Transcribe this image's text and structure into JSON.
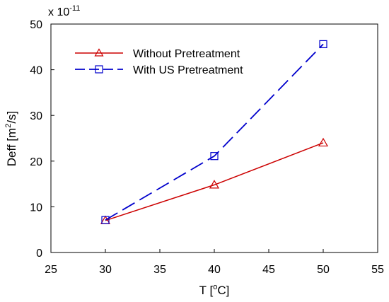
{
  "chart_data": {
    "type": "line",
    "scale_note": "x 10",
    "scale_exponent": "-11",
    "xlabel_text": "T [",
    "xlabel_sup": "o",
    "xlabel_unit": "C]",
    "ylabel_text": "Deff [m",
    "ylabel_sup": "2",
    "ylabel_unit": "/s]",
    "xlim": [
      25,
      55
    ],
    "ylim": [
      0,
      50
    ],
    "xticks": [
      25,
      30,
      35,
      40,
      45,
      50,
      55
    ],
    "yticks": [
      0,
      10,
      20,
      30,
      40,
      50
    ],
    "grid": false,
    "legend_position": "top-left",
    "x": [
      30,
      40,
      50
    ],
    "series": [
      {
        "name": "Without Pretreatment",
        "values": [
          7.0,
          14.8,
          24.0
        ],
        "color": "#cc0000",
        "marker": "triangle",
        "line_style": "solid"
      },
      {
        "name": "With US Pretreatment",
        "values": [
          7.1,
          21.1,
          45.6
        ],
        "color": "#0000cc",
        "marker": "square",
        "line_style": "dashed"
      }
    ]
  }
}
